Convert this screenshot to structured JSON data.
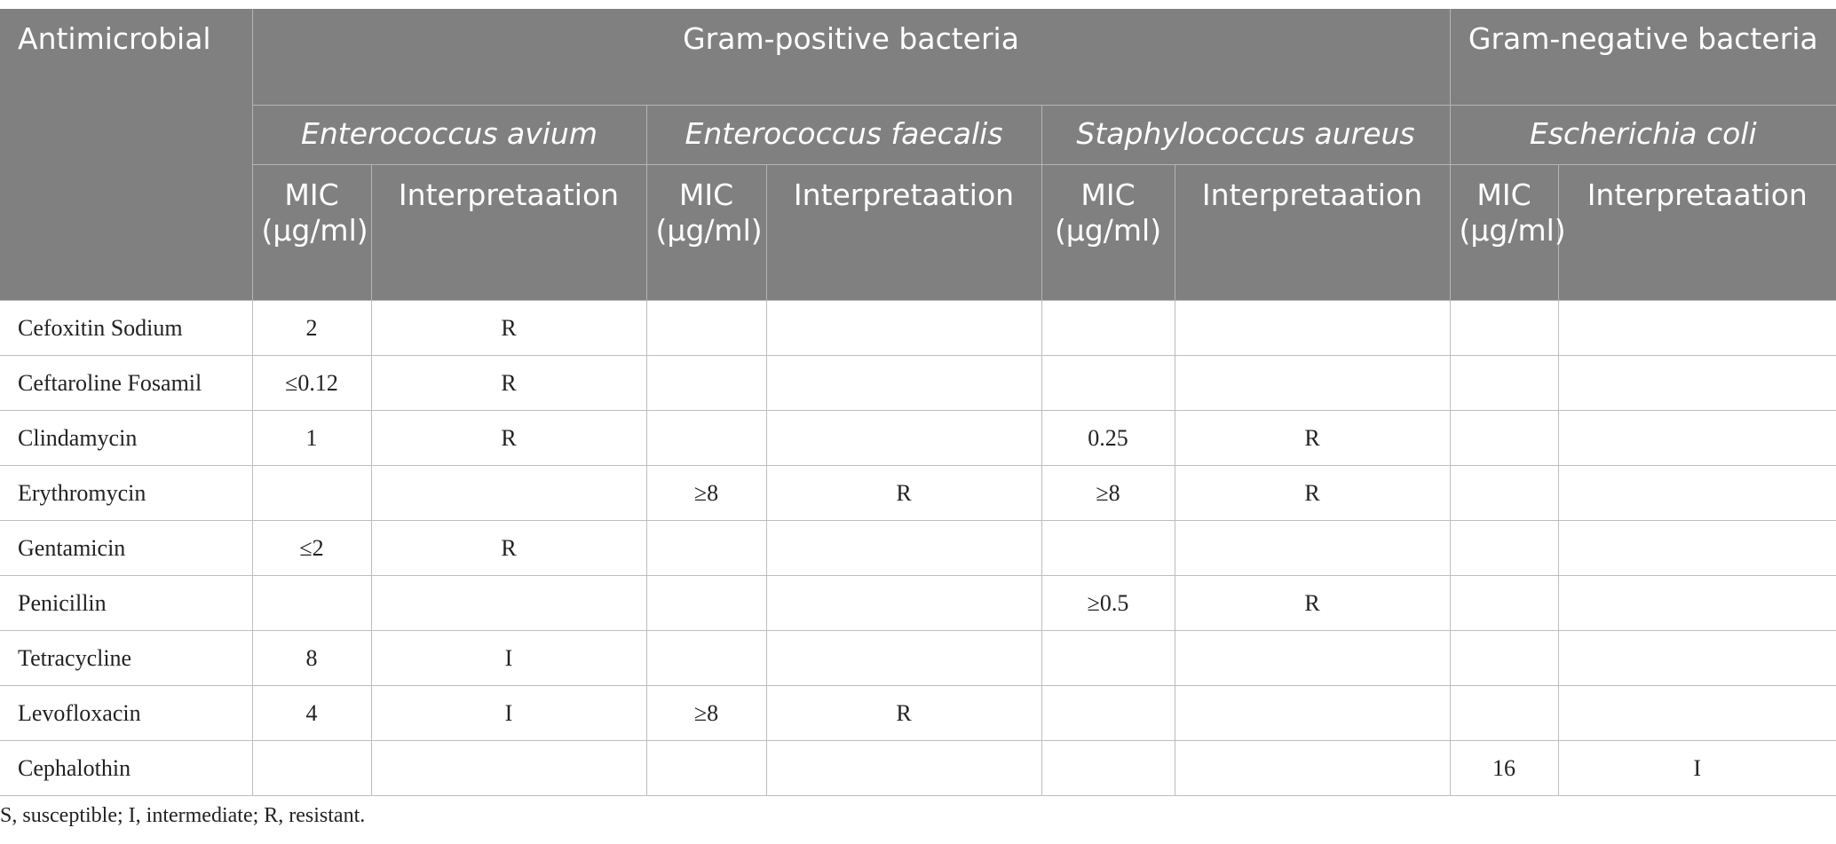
{
  "table": {
    "header": {
      "antimicrobial": "Antimicrobial",
      "groups": [
        "Gram-positive bacteria",
        "Gram-negative bacteria"
      ],
      "species": [
        "Enterococcus avium",
        "Enterococcus faecalis",
        "Staphylococcus aureus",
        "Escherichia coli"
      ],
      "mic": "MIC (μg/ml)",
      "interpretation": "Interpretaation"
    },
    "rows": [
      {
        "antimicrobial": "Cefoxitin Sodium",
        "values": {
          "0": "2",
          "1": "R"
        }
      },
      {
        "antimicrobial": "Ceftaroline Fosamil",
        "values": {
          "0": "≤0.12",
          "1": "R"
        }
      },
      {
        "antimicrobial": "Clindamycin",
        "values": {
          "0": "1",
          "1": "R",
          "4": "0.25",
          "5": "R"
        }
      },
      {
        "antimicrobial": "Erythromycin",
        "values": {
          "2": "≥8",
          "3": "R",
          "4": "≥8",
          "5": "R"
        }
      },
      {
        "antimicrobial": "Gentamicin",
        "values": {
          "0": "≤2",
          "1": "R"
        }
      },
      {
        "antimicrobial": "Penicillin",
        "values": {
          "4": "≥0.5",
          "5": "R"
        }
      },
      {
        "antimicrobial": "Tetracycline",
        "values": {
          "0": "8",
          "1": "I"
        }
      },
      {
        "antimicrobial": "Levofloxacin",
        "values": {
          "0": "4",
          "1": "I",
          "2": "≥8",
          "3": "R"
        }
      },
      {
        "antimicrobial": "Cephalothin",
        "values": {
          "6": "16",
          "7": "I"
        }
      }
    ],
    "footnote": "S, susceptible; I, intermediate; R, resistant."
  }
}
